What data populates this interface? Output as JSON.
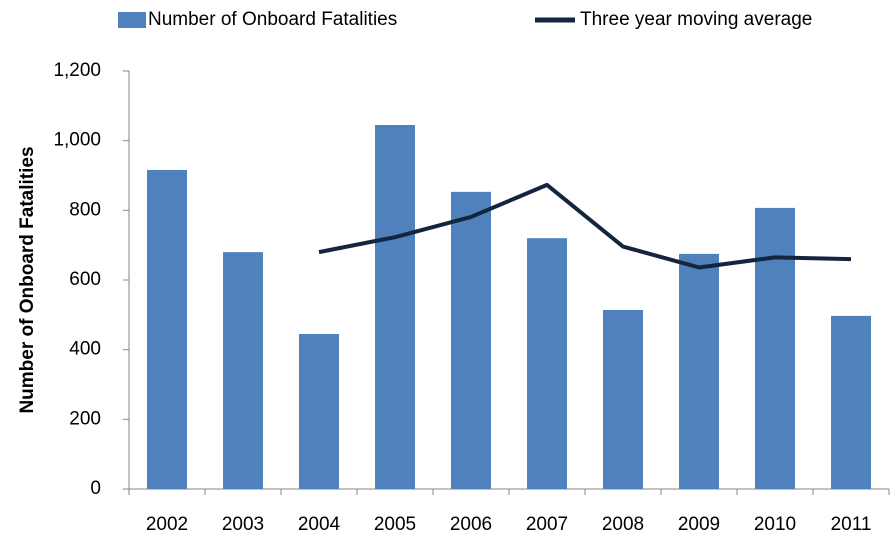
{
  "chart_data": {
    "type": "bar",
    "y_label": "Number of Onboard Fatalities",
    "categories": [
      "2002",
      "2003",
      "2004",
      "2005",
      "2006",
      "2007",
      "2008",
      "2009",
      "2010",
      "2011"
    ],
    "series": [
      {
        "name": "Number of Onboard Fatalities",
        "type": "bar",
        "color": "#4f81bd",
        "values": [
          916,
          680,
          445,
          1045,
          853,
          720,
          514,
          675,
          807,
          497
        ]
      },
      {
        "name": "Three year moving average",
        "type": "line",
        "color": "#13253f",
        "values": [
          null,
          null,
          680,
          723,
          781,
          873,
          696,
          636,
          665,
          660
        ]
      }
    ],
    "ylim": [
      0,
      1200
    ],
    "yticks": [
      0,
      200,
      400,
      600,
      800,
      {
        "value": 1000,
        "label": "1,000"
      },
      {
        "value": 1200,
        "label": "1,200"
      }
    ],
    "grid": false,
    "legend": "top"
  }
}
